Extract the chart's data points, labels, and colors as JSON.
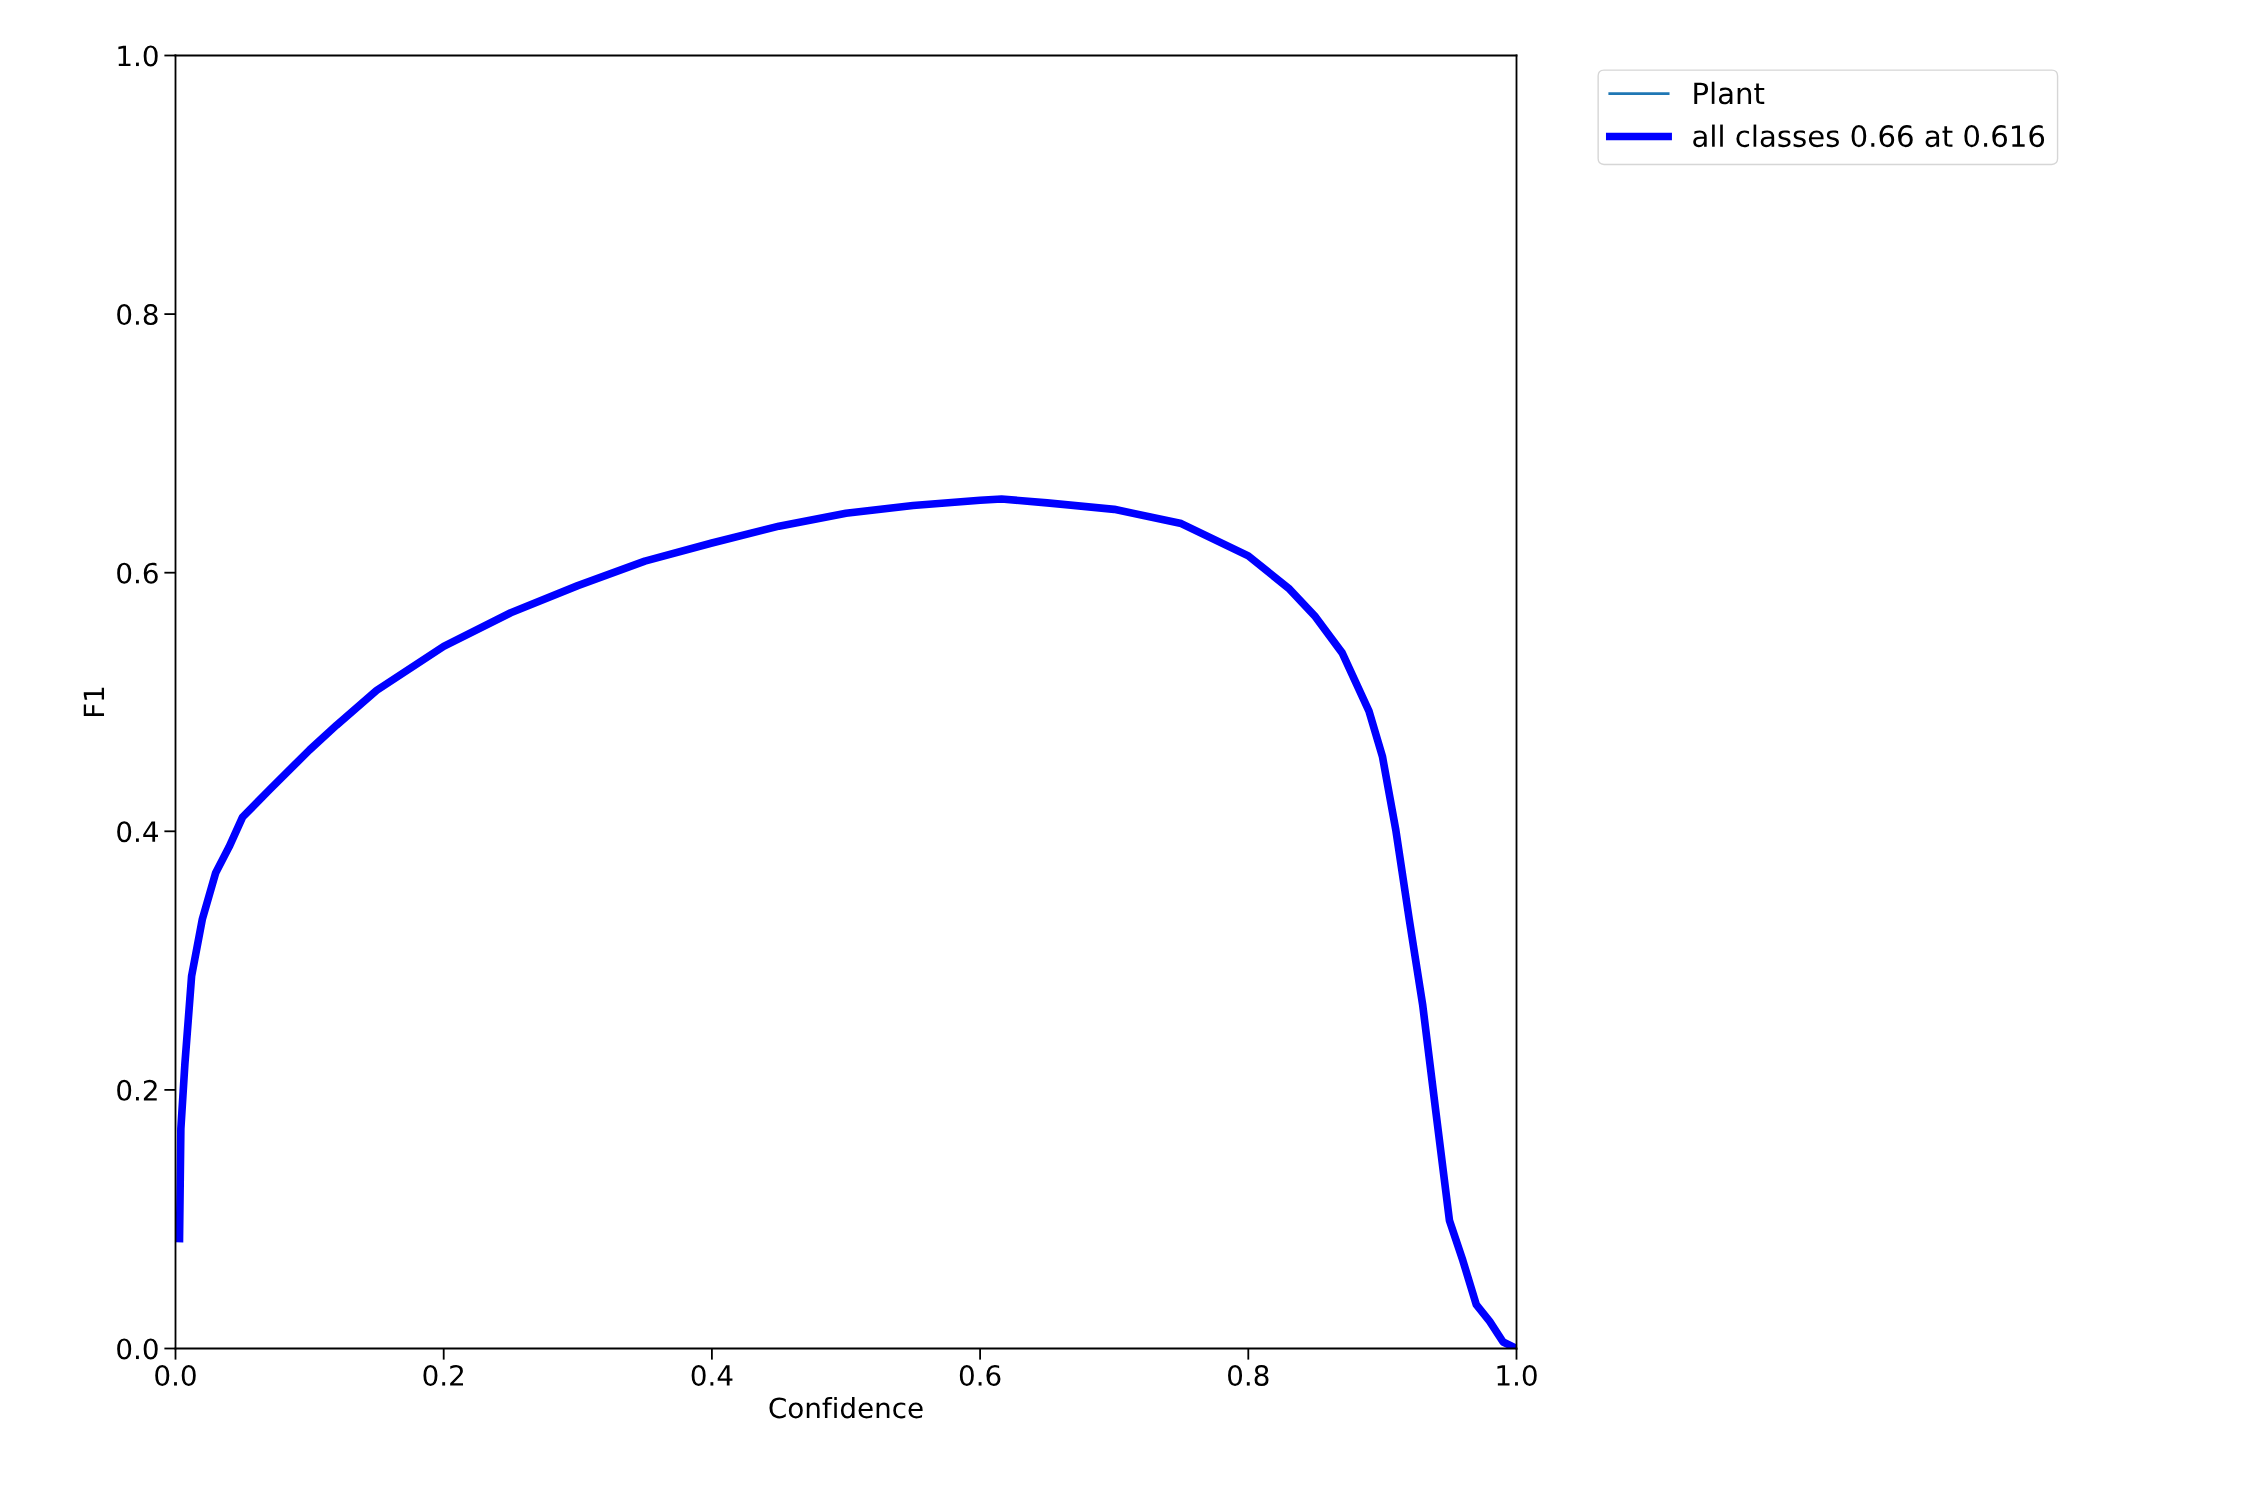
{
  "chart_data": {
    "type": "line",
    "xlabel": "Confidence",
    "ylabel": "F1",
    "xlim": [
      0.0,
      1.0
    ],
    "ylim": [
      0.0,
      1.0
    ],
    "xticks": [
      {
        "value": 0,
        "label": "0.0"
      },
      0.2,
      0.4,
      0.6,
      0.8,
      {
        "value": 1,
        "label": "1.0"
      }
    ],
    "yticks": [
      {
        "value": 0,
        "label": "0.0"
      },
      0.2,
      0.4,
      0.6,
      0.8,
      {
        "value": 1,
        "label": "1.0"
      }
    ],
    "grid": false,
    "legend": "top right",
    "marker": "none",
    "line_style": "solid",
    "series": [
      {
        "name": "Plant",
        "color": "#1f77b4"
      },
      {
        "name": "all classes 0.66 at 0.616",
        "color": "#0000ff",
        "x": [
          0.003,
          0.004,
          0.007,
          0.012,
          0.02,
          0.03,
          0.04,
          0.05,
          0.07,
          0.1,
          0.12,
          0.15,
          0.2,
          0.25,
          0.3,
          0.35,
          0.4,
          0.45,
          0.5,
          0.55,
          0.6,
          0.616,
          0.65,
          0.7,
          0.75,
          0.8,
          0.83,
          0.85,
          0.87,
          0.89,
          0.9,
          0.91,
          0.92,
          0.93,
          0.94,
          0.95,
          0.96,
          0.97,
          0.98,
          0.99,
          1.0
        ],
        "values": [
          0.085,
          0.17,
          0.22,
          0.288,
          0.332,
          0.368,
          0.388,
          0.411,
          0.432,
          0.463,
          0.482,
          0.509,
          0.543,
          0.569,
          0.59,
          0.609,
          0.623,
          0.636,
          0.646,
          0.652,
          0.656,
          0.657,
          0.654,
          0.649,
          0.638,
          0.613,
          0.588,
          0.566,
          0.538,
          0.493,
          0.458,
          0.401,
          0.332,
          0.266,
          0.182,
          0.099,
          0.068,
          0.034,
          0.021,
          0.005,
          0.0
        ]
      }
    ]
  }
}
